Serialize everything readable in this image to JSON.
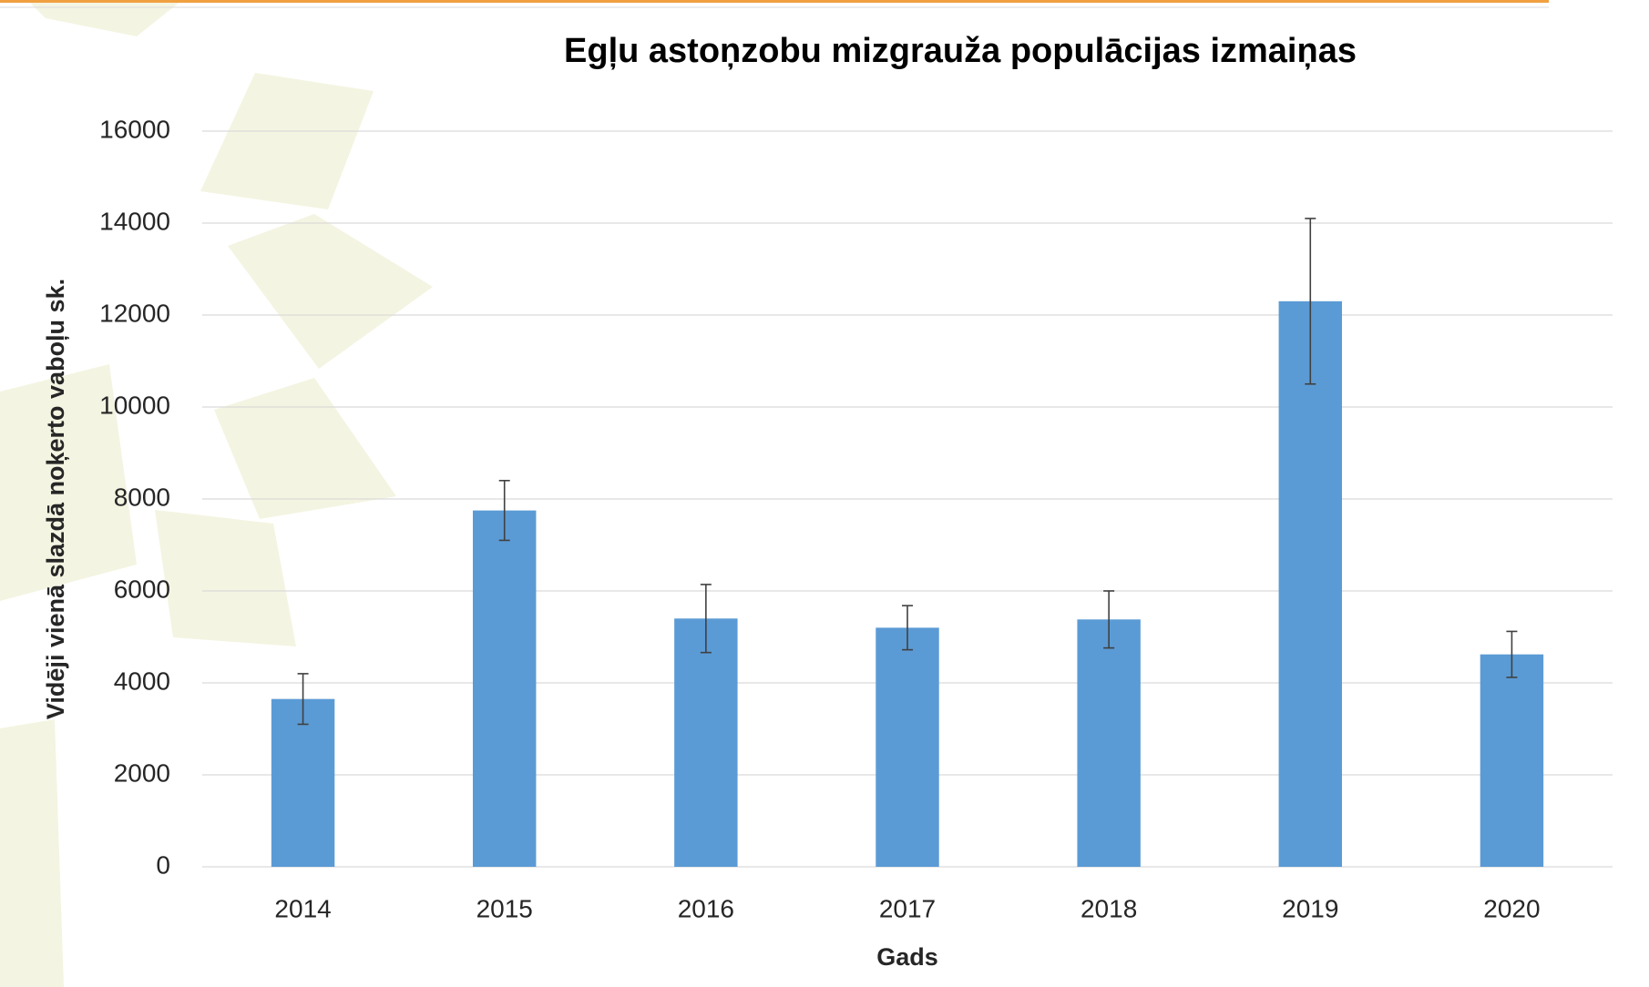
{
  "chart_data": {
    "type": "bar",
    "title": "Egļu astoņzobu mizgrauža populācijas izmaiņas",
    "x_label": "Gads",
    "y_label": "Vidēji vienā slazdā noķerto vaboļu sk.",
    "categories": [
      "2014",
      "2015",
      "2016",
      "2017",
      "2018",
      "2019",
      "2020"
    ],
    "values": [
      3650,
      7750,
      5400,
      5200,
      5380,
      12300,
      4620
    ],
    "errors": [
      550,
      650,
      740,
      480,
      620,
      1800,
      500
    ],
    "color": "#5b9bd5",
    "ylim": [
      0,
      16000
    ],
    "yticks": [
      0,
      2000,
      4000,
      6000,
      8000,
      10000,
      12000,
      14000,
      16000
    ],
    "grid": true
  }
}
